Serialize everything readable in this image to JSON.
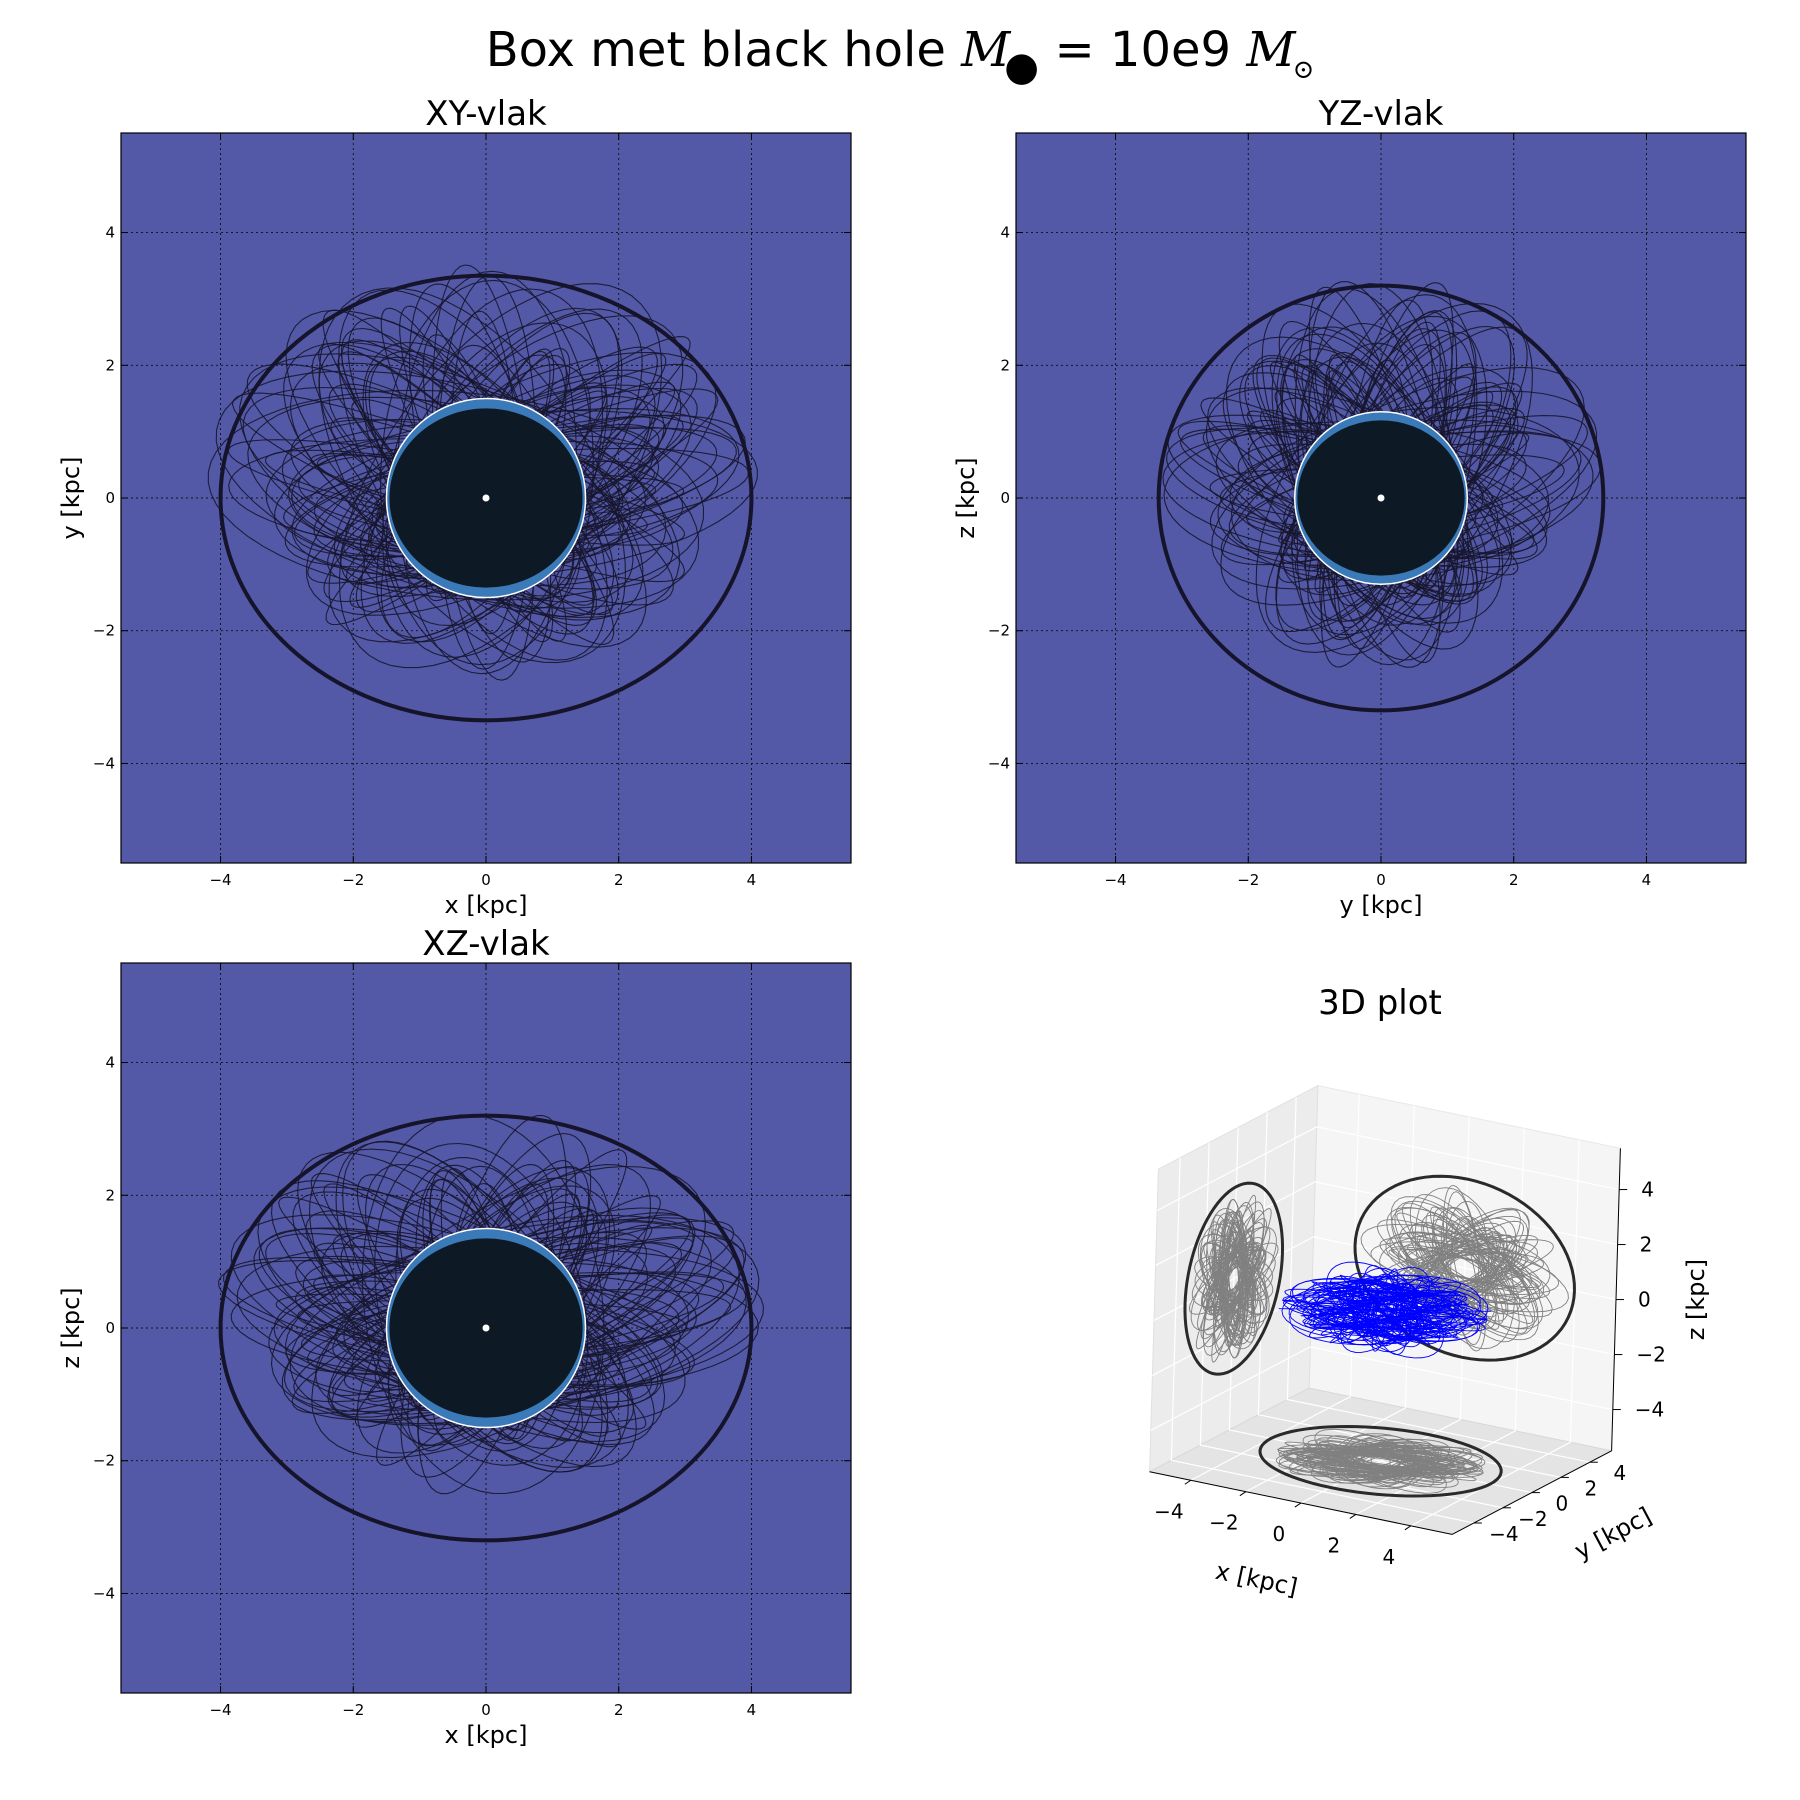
{
  "figure": {
    "suptitle_prefix": "Box met black hole",
    "suptitle_mass_symbol": "M",
    "suptitle_bullet": "●",
    "suptitle_equals": "= 10e9",
    "suptitle_sun_symbol": "M",
    "suptitle_sun_sub": "⊙"
  },
  "colors": {
    "panel_background": "#5359a7",
    "orbit_line": "#17162e",
    "outer_ellipse": "#15142a",
    "inner_circle": "#ffffff",
    "inner_fill": "#0d1a26",
    "inner_highlight": "#3a7ab8",
    "projection_gray": "#808080",
    "trajectory_3d": "#0000ff",
    "pane_gray": "#f0f0f0"
  },
  "chart_data": [
    {
      "type": "line",
      "title": "XY-vlak",
      "xlabel": "x [kpc]",
      "ylabel": "y [kpc]",
      "xlim": [
        -5.5,
        5.5
      ],
      "ylim": [
        -5.5,
        5.5
      ],
      "xticks": [
        -4,
        -2,
        0,
        2,
        4
      ],
      "yticks": [
        -4,
        -2,
        0,
        2,
        4
      ],
      "grid": true,
      "outer_ellipse": {
        "cx": 0,
        "cy": 0,
        "rx": 4.0,
        "ry": 3.35
      },
      "inner_circle": {
        "cx": 0,
        "cy": 0,
        "r": 1.5
      },
      "orbit_extent": {
        "rx": 3.8,
        "ry": 3.2
      }
    },
    {
      "type": "line",
      "title": "YZ-vlak",
      "xlabel": "y [kpc]",
      "ylabel": "z [kpc]",
      "xlim": [
        -5.5,
        5.5
      ],
      "ylim": [
        -5.5,
        5.5
      ],
      "xticks": [
        -4,
        -2,
        0,
        2,
        4
      ],
      "yticks": [
        -4,
        -2,
        0,
        2,
        4
      ],
      "grid": true,
      "outer_ellipse": {
        "cx": 0,
        "cy": 0,
        "rx": 3.35,
        "ry": 3.2
      },
      "inner_circle": {
        "cx": 0,
        "cy": 0,
        "r": 1.3
      },
      "orbit_extent": {
        "rx": 3.1,
        "ry": 3.0
      }
    },
    {
      "type": "line",
      "title": "XZ-vlak",
      "xlabel": "x [kpc]",
      "ylabel": "z [kpc]",
      "xlim": [
        -5.5,
        5.5
      ],
      "ylim": [
        -5.5,
        5.5
      ],
      "xticks": [
        -4,
        -2,
        0,
        2,
        4
      ],
      "yticks": [
        -4,
        -2,
        0,
        2,
        4
      ],
      "grid": true,
      "outer_ellipse": {
        "cx": 0,
        "cy": 0,
        "rx": 4.0,
        "ry": 3.2
      },
      "inner_circle": {
        "cx": 0,
        "cy": 0,
        "r": 1.5
      },
      "orbit_extent": {
        "rx": 3.8,
        "ry": 3.0
      }
    },
    {
      "type": "line",
      "title": "3D plot",
      "xlabel": "x [kpc]",
      "ylabel": "y [kpc]",
      "zlabel": "z [kpc]",
      "xlim": [
        -5.5,
        5.5
      ],
      "ylim": [
        -5.5,
        5.5
      ],
      "zlim": [
        -5.5,
        5.5
      ],
      "xticks": [
        -4,
        -2,
        0,
        2,
        4
      ],
      "yticks": [
        -4,
        -2,
        0,
        2,
        4
      ],
      "zticks": [
        -4,
        -2,
        0,
        2,
        4
      ],
      "grid": true,
      "projections": [
        "xy",
        "yz",
        "xz"
      ]
    }
  ]
}
